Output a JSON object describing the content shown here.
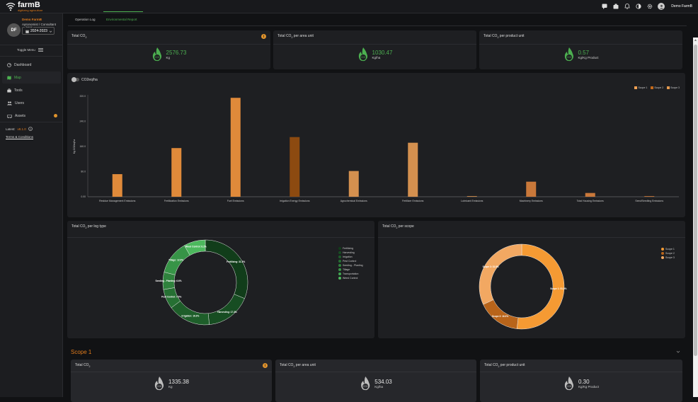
{
  "app": {
    "logo_name": "farmB",
    "logo_tag": "digitizing agriculture"
  },
  "header": {
    "user_name": "Demo FarmB"
  },
  "profile": {
    "initials": "DF",
    "farm_name": "Demo FarmB",
    "role": "Agronomist / Consultant",
    "season_label": "Season",
    "season_value": "2024-2023"
  },
  "sidebar": {
    "toggle_label": "Toggle Menu",
    "items": [
      {
        "label": "Dashboard",
        "icon": "dashboard-icon"
      },
      {
        "label": "Map",
        "icon": "map-icon",
        "active": true
      },
      {
        "label": "Tools",
        "icon": "tools-icon"
      },
      {
        "label": "Users",
        "icon": "users-icon"
      },
      {
        "label": "Assets",
        "icon": "assets-icon",
        "badge": true
      }
    ],
    "latest_label": "Latest:",
    "version": "v8.1.0",
    "terms": "Terms & Conditions"
  },
  "tabs": [
    {
      "label": "Operation Log"
    },
    {
      "label": "Environmental Report",
      "active": true
    }
  ],
  "kpis": [
    {
      "title": "Total CO",
      "sub": "2",
      "title_rest": "",
      "value": "2576.73",
      "unit": "Kg"
    },
    {
      "title": "Total CO",
      "sub": "2",
      "title_rest": " per area unit",
      "value": "1030.47",
      "unit": "Kg/ha"
    },
    {
      "title": "Total CO",
      "sub": "2",
      "title_rest": " per product unit",
      "value": "0.57",
      "unit": "Kg/Kg Product"
    }
  ],
  "co2_icon_label": "CO2",
  "bar_card": {
    "toggle_label": "CO2eq/ha"
  },
  "chart_data": [
    {
      "type": "bar",
      "ylabel": "Kg CO2eq/ha",
      "ylim": [
        0,
        320
      ],
      "yticks": [
        "0.00",
        "80.0",
        "160.0",
        "240.0",
        "320.0"
      ],
      "legend": [
        "Scope 1",
        "Scope 2",
        "Scope 3"
      ],
      "legend_colors": [
        "#f2a154",
        "#c46a1a",
        "#e39a4f"
      ],
      "categories": [
        "Residue Management Emissions",
        "Fertilization Emissions",
        "Fuel Emissions",
        "Irrigation Energy Emissions",
        "Agrochemical Emissions",
        "Fertilizer Emissions",
        "Lubricant Emissions",
        "Machinery Emissions",
        "Total Housing Emissions",
        "Seed/Seedling Emissions"
      ],
      "values": [
        72,
        155,
        315,
        190,
        82,
        172,
        2,
        48,
        12,
        2
      ],
      "colors": [
        "#e08a3a",
        "#e08a3a",
        "#e08a3a",
        "#8c4a10",
        "#d4904f",
        "#d4904f",
        "#d4904f",
        "#c9783a",
        "#c9783a",
        "#c9783a"
      ]
    },
    {
      "type": "pie",
      "title": "Total CO2 per log type",
      "labels": [
        "Fertilizing",
        "Harvesting",
        "Irrigation",
        "Pest Control",
        "Seeding - Planting",
        "Tillage",
        "Transportation",
        "Weed Control"
      ],
      "values": [
        31.2,
        17.3,
        16.3,
        7.5,
        6.6,
        12.9,
        0,
        8.2
      ],
      "colors": [
        "#113d1a",
        "#174d22",
        "#1e5e2a",
        "#267033",
        "#2f823d",
        "#379447",
        "#41a652",
        "#4cb85d"
      ],
      "data_labels": [
        "Fertilizing: 31.2%",
        "Harvesting: 17.3%",
        "Irrigation: 16.3%",
        "Pest Control: 7.5%",
        "Seeding - Planting: 6.6%",
        "Tillage: 12.9%",
        "",
        "Weed Control: 8.2%"
      ]
    },
    {
      "type": "pie",
      "title": "Total CO2 per scope",
      "labels": [
        "Scope 1",
        "Scope 2",
        "Scope 3"
      ],
      "values": [
        51.8,
        16.3,
        31.9
      ],
      "colors": [
        "#f59a33",
        "#b8641a",
        "#f2a862"
      ],
      "data_labels": [
        "Scope 1: 51.8%",
        "Scope 2: 16.3%",
        "Scope 3: 31.9%"
      ]
    }
  ],
  "log_card": {
    "title": "Total CO",
    "sub": "2",
    "title_rest": " per log type"
  },
  "scope_card": {
    "title": "Total CO",
    "sub": "2",
    "title_rest": " per scope"
  },
  "scope1": {
    "title": "Scope 1",
    "kpis": [
      {
        "title": "Total CO",
        "sub": "2",
        "title_rest": "",
        "value": "1335.38",
        "unit": "Kg"
      },
      {
        "title": "Total CO",
        "sub": "2",
        "title_rest": " per area unit",
        "value": "534.03",
        "unit": "Kg/ha"
      },
      {
        "title": "Total CO",
        "sub": "2",
        "title_rest": " per product unit",
        "value": "0.30",
        "unit": "Kg/Kg Product"
      }
    ]
  }
}
